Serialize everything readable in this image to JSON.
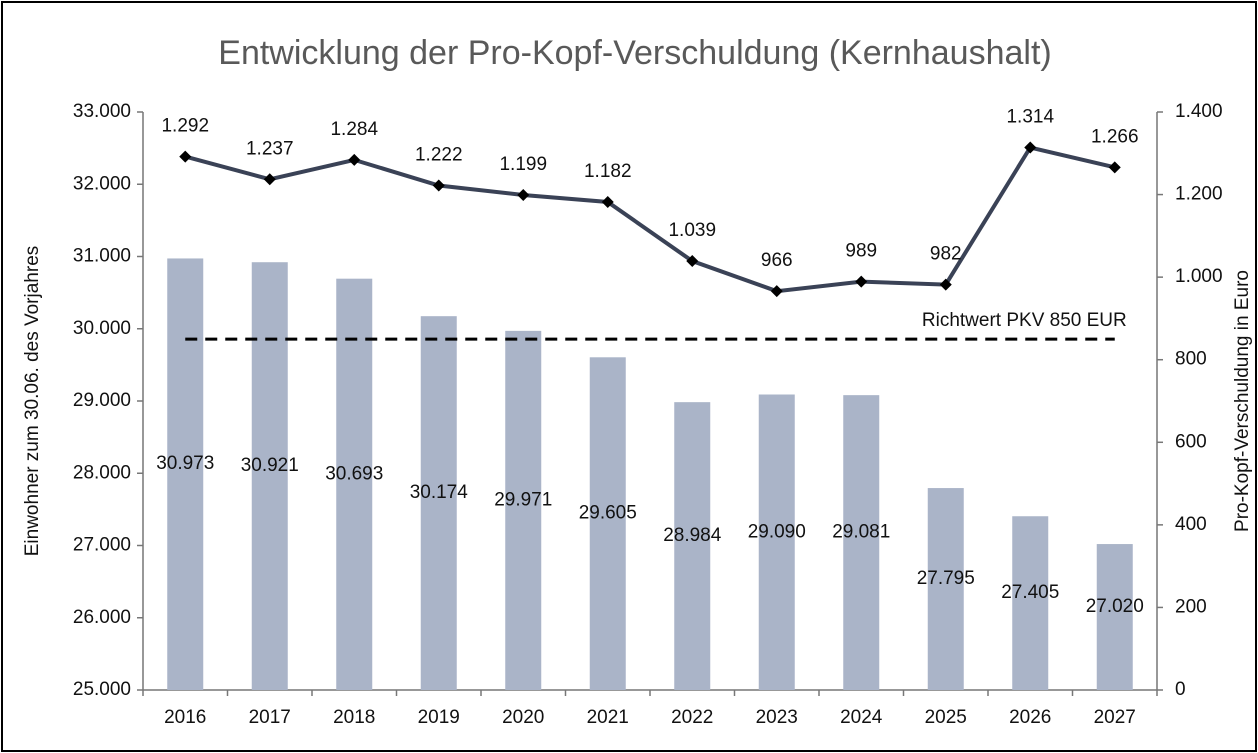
{
  "chart_data": {
    "type": "bar",
    "title": "Entwicklung der Pro-Kopf-Verschuldung (Kernhaushalt)",
    "ylabel": "Einwohner zum 30.06. des Vorjahres",
    "y2label": "Pro-Kopf-Verschuldung in Euro",
    "categories": [
      "2016",
      "2017",
      "2018",
      "2019",
      "2020",
      "2021",
      "2022",
      "2023",
      "2024",
      "2025",
      "2026",
      "2027"
    ],
    "series": [
      {
        "type": "bar",
        "color": "#aab4c8",
        "axis": "y",
        "values": [
          30973,
          30921,
          30693,
          30174,
          29971,
          29605,
          28984,
          29090,
          29081,
          27795,
          27405,
          27020
        ],
        "value_labels": [
          "30.973",
          "30.921",
          "30.693",
          "30.174",
          "29.971",
          "29.605",
          "28.984",
          "29.090",
          "29.081",
          "27.795",
          "27.405",
          "27.020"
        ]
      },
      {
        "type": "line",
        "color": "#3a4256",
        "axis": "y2",
        "values": [
          1292,
          1237,
          1284,
          1222,
          1199,
          1182,
          1039,
          966,
          989,
          982,
          1314,
          1266
        ],
        "value_labels": [
          "1.292",
          "1.237",
          "1.284",
          "1.222",
          "1.199",
          "1.182",
          "1.039",
          "966",
          "989",
          "982",
          "1.314",
          "1.266"
        ]
      }
    ],
    "reference_line": {
      "value": 850,
      "axis": "y2",
      "label": "Richtwert PKV 850 EUR"
    },
    "ylim": [
      25000,
      33000
    ],
    "yticks": [
      {
        "value": 25000,
        "label": "25.000"
      },
      {
        "value": 26000,
        "label": "26.000"
      },
      {
        "value": 27000,
        "label": "27.000"
      },
      {
        "value": 28000,
        "label": "28.000"
      },
      {
        "value": 29000,
        "label": "29.000"
      },
      {
        "value": 30000,
        "label": "30.000"
      },
      {
        "value": 31000,
        "label": "31.000"
      },
      {
        "value": 32000,
        "label": "32.000"
      },
      {
        "value": 33000,
        "label": "33.000"
      }
    ],
    "y2lim": [
      0,
      1400
    ],
    "y2ticks": [
      0,
      200,
      400,
      600,
      800,
      {
        "value": 1000,
        "label": "1.000"
      },
      {
        "value": 1200,
        "label": "1.200"
      },
      {
        "value": 1400,
        "label": "1.400"
      }
    ],
    "grid": false
  }
}
